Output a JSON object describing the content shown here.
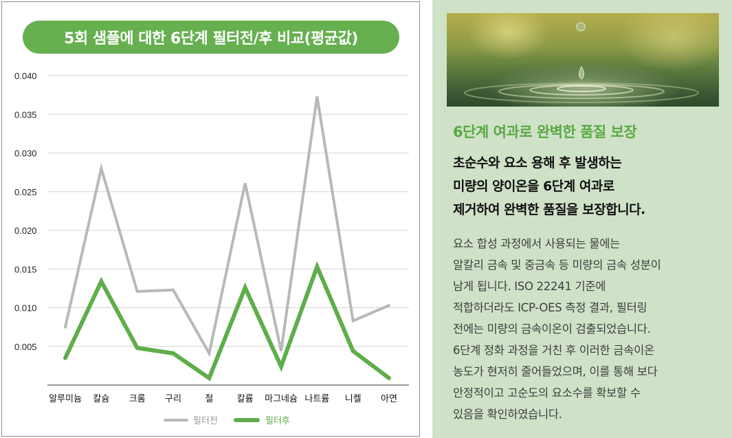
{
  "chart_data": {
    "type": "line",
    "title": "5회 샘플에 대한 6단계 필터전/후 비교(평균값)",
    "categories": [
      "알루미늄",
      "칼슘",
      "크롬",
      "구리",
      "철",
      "칼륨",
      "마그네슘",
      "나트륨",
      "니켈",
      "아연"
    ],
    "series": [
      {
        "name": "필터전",
        "color": "#b8b8b8",
        "values": [
          0.0075,
          0.028,
          0.0121,
          0.0123,
          0.0041,
          0.0261,
          0.0044,
          0.0373,
          0.0083,
          0.0103
        ]
      },
      {
        "name": "필터후",
        "color": "#5fad4b",
        "values": [
          0.0035,
          0.0134,
          0.0048,
          0.0041,
          0.0009,
          0.0126,
          0.0024,
          0.0153,
          0.0044,
          0.0009
        ]
      }
    ],
    "ylim": [
      0,
      0.04
    ],
    "yticks": [
      "0.040",
      "0.035",
      "0.030",
      "0.025",
      "0.020",
      "0.015",
      "0.010",
      "0.005"
    ],
    "grid": true,
    "legend_position": "bottom"
  },
  "info": {
    "headline": "6단계 여과로 완벽한 품질 보장",
    "subhead_lines": [
      "초순수와 요소 용해 후 발생하는",
      "미량의 양이온을 6단계 여과로",
      "제거하여 완벽한 품질을 보장합니다."
    ],
    "body_lines": [
      "요소 합성 과정에서 사용되는 물에는",
      "알칼리 금속 및 중금속 등 미량의 금속 성분이",
      "남게 됩니다. ISO 22241 기준에",
      "적합하더라도 ICP-OES 측정 결과, 필터링",
      "전에는 미량의 금속이온이 검출되었습니다.",
      "6단계 정화 과정을 거친 후 이러한 금속이온",
      "농도가 현저히 줄어들었으며, 이를 통해 보다",
      "안정적이고 고순도의 요소수를 확보할 수",
      "있음을 확인하였습니다."
    ]
  }
}
